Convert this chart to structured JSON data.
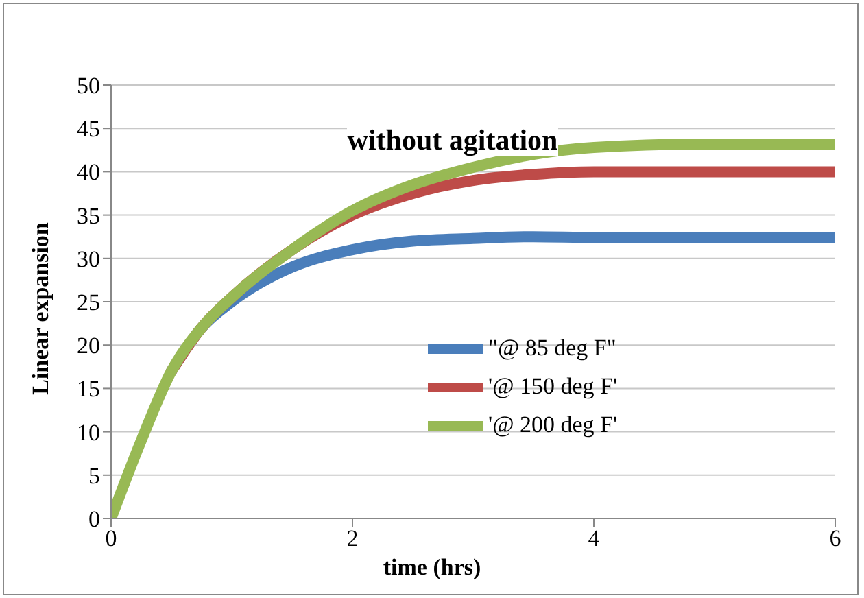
{
  "chart_data": {
    "type": "line",
    "title": "without agitation",
    "xlabel": "time (hrs)",
    "ylabel": "Linear expansion",
    "x": [
      0,
      0.25,
      0.5,
      0.75,
      1,
      1.5,
      2,
      2.5,
      3,
      3.5,
      4,
      5,
      6
    ],
    "series": [
      {
        "name": "\"@ 85 deg F\"",
        "color": "#4a7ebb",
        "values": [
          null,
          null,
          17,
          22,
          25,
          29,
          31,
          32,
          32.3,
          32.5,
          32.4,
          32.4,
          32.4
        ]
      },
      {
        "name": "'@ 150 deg F'",
        "color": "#be4b48",
        "values": [
          null,
          null,
          17,
          22,
          25.5,
          31,
          35,
          37.5,
          39,
          39.7,
          40,
          40,
          40
        ]
      },
      {
        "name": "'@ 200 deg F'",
        "color": "#98b954",
        "values": [
          0,
          9,
          17,
          22,
          25.5,
          31,
          35.5,
          38.5,
          40.5,
          42,
          42.8,
          43.2,
          43.2
        ]
      }
    ],
    "xlim": [
      0,
      6
    ],
    "xticks": [
      0,
      2,
      4,
      6
    ],
    "ylim": [
      0,
      50
    ],
    "yticks": [
      0,
      5,
      10,
      15,
      20,
      25,
      30,
      35,
      40,
      45,
      50
    ],
    "grid": "y",
    "legend": "right",
    "marker": "none",
    "line_style": "solid"
  }
}
